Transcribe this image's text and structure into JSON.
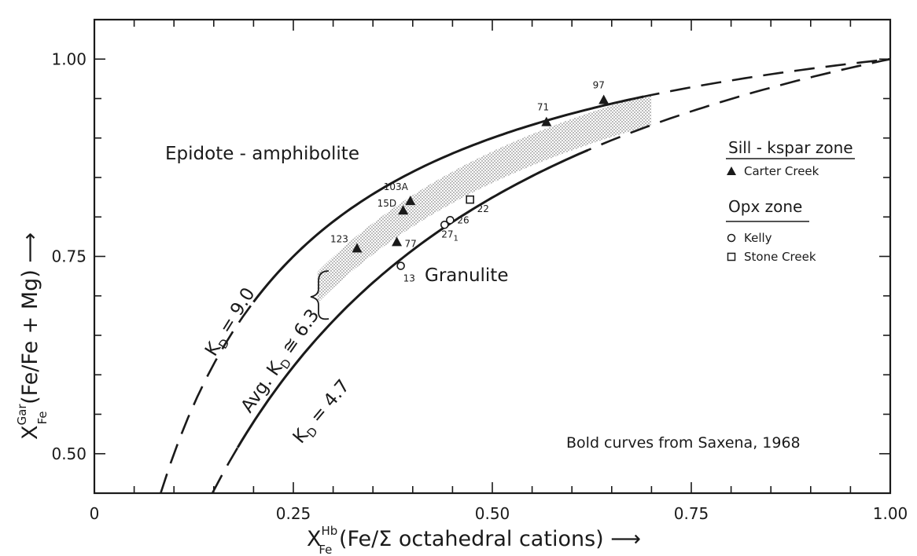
{
  "chart_data": {
    "type": "scatter",
    "xlim": [
      0,
      1.0
    ],
    "ylim": [
      0.45,
      1.05
    ],
    "x_ticks": [
      "0",
      "0.25",
      "0.50",
      "0.75",
      "1.00"
    ],
    "y_ticks": [
      "0.50",
      "0.75",
      "1.00"
    ],
    "xlabel": {
      "main": "X",
      "sup": "Hb",
      "sub": "Fe",
      "rest": " (Fe/Σ octahedral cations) ⟶"
    },
    "ylabel": {
      "main": "X",
      "sup": "Gar",
      "sub": "Fe",
      "rest": " (Fe/Fe + Mg) ⟶"
    },
    "curves": [
      {
        "name": "K_D = 9.0",
        "kd": 9.0,
        "bold_range": [
          0.2,
          0.69
        ]
      },
      {
        "name": "K_D = 4.7",
        "kd": 4.7,
        "bold_range": [
          0.18,
          0.62
        ]
      }
    ],
    "shaded_band": {
      "kd": 6.3,
      "x_range": [
        0.28,
        0.7
      ]
    },
    "series": [
      {
        "name": "Carter Creek",
        "marker": "filled-triangle",
        "points": [
          {
            "label": "123",
            "x": 0.33,
            "y": 0.76
          },
          {
            "label": "77",
            "x": 0.38,
            "y": 0.768
          },
          {
            "label": "15D",
            "x": 0.388,
            "y": 0.808
          },
          {
            "label": "103A",
            "x": 0.397,
            "y": 0.82
          },
          {
            "label": "71",
            "x": 0.568,
            "y": 0.92
          },
          {
            "label": "97",
            "x": 0.64,
            "y": 0.948
          }
        ]
      },
      {
        "name": "Kelly",
        "marker": "open-circle",
        "points": [
          {
            "label": "13",
            "x": 0.385,
            "y": 0.738
          },
          {
            "label": "27",
            "sublabel": "1",
            "x": 0.44,
            "y": 0.79
          },
          {
            "label": "26",
            "x": 0.447,
            "y": 0.796
          }
        ]
      },
      {
        "name": "Stone Creek",
        "marker": "open-square",
        "points": [
          {
            "label": "22",
            "x": 0.472,
            "y": 0.822
          }
        ]
      }
    ],
    "annotations": {
      "region_upper": "Epidote - amphibolite",
      "region_lower": "Granulite",
      "kd_upper": "K",
      "kd_upper_sub": "D",
      "kd_upper_value": " = 9.0",
      "kd_lower": "K",
      "kd_lower_sub": "D",
      "kd_lower_value": " = 4.7",
      "avg_prefix": "Avg. K",
      "avg_sub": "D",
      "avg_value": " ≅ 6.3",
      "note": "Bold curves from Saxena, 1968"
    },
    "legend": {
      "position": "right",
      "groups": [
        {
          "title": "Sill - kspar zone",
          "entries": [
            "Carter Creek"
          ]
        },
        {
          "title": "Opx zone",
          "entries": [
            "Kelly",
            "Stone Creek"
          ]
        }
      ]
    },
    "grid": false
  }
}
